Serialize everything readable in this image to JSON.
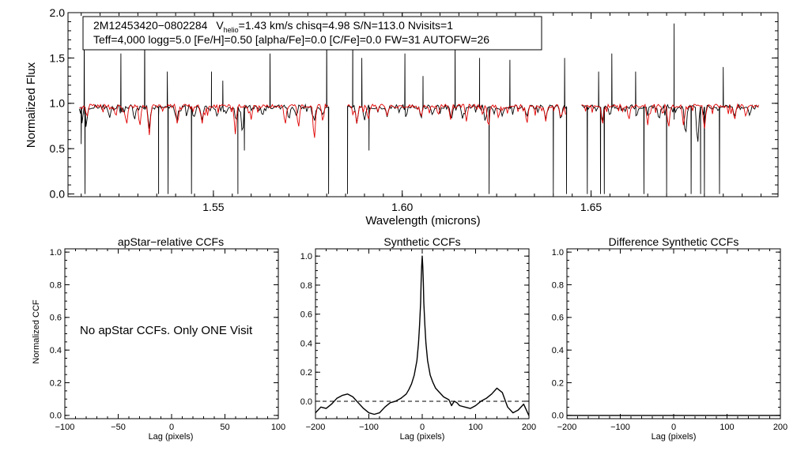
{
  "colors": {
    "observed": "#000000",
    "model": "#e00000",
    "background": "#ffffff"
  },
  "info_box": {
    "line1_star": "2M12453420−0802284",
    "line1_v": "V",
    "line1_vsub": "helio",
    "line1_rest": "=1.43 km/s  chisq=4.98  S/N=113.0  Nvisits=1",
    "line2": "Teff=4,000 logg=5.0 [Fe/H]=0.50 [alpha/Fe]=0.0 [C/Fe]=0.0 FW=31 AUTOFW=26"
  },
  "no_ccf_message": "No apStar CCFs.  Only ONE Visit",
  "chart_data": [
    {
      "id": "spectrum",
      "type": "line",
      "title": "",
      "xlabel": "Wavelength (microns)",
      "ylabel": "Normalized Flux",
      "xlim": [
        1.5115,
        1.6995
      ],
      "ylim": [
        -0.03,
        2.0
      ],
      "xticks": [
        1.55,
        1.6,
        1.65
      ],
      "xtick_labels": [
        "1.55",
        "1.60",
        "1.65"
      ],
      "yticks": [
        0.0,
        0.5,
        1.0,
        1.5,
        2.0
      ],
      "ytick_labels": [
        "0.0",
        "0.5",
        "1.0",
        "1.5",
        "2.0"
      ],
      "chips": [
        [
          1.5145,
          1.5805
        ],
        [
          1.5855,
          1.6435
        ],
        [
          1.6475,
          1.6945
        ]
      ],
      "series": [
        {
          "name": "observed spectrum",
          "color": "#000000",
          "continuum": 0.96,
          "absorption": [
            [
              1.5152,
              0.78
            ],
            [
              1.5163,
              0.72
            ],
            [
              1.5225,
              0.83
            ],
            [
              1.5291,
              0.8
            ],
            [
              1.533,
              0.7
            ],
            [
              1.5403,
              0.78
            ],
            [
              1.5448,
              0.82
            ],
            [
              1.547,
              0.8
            ],
            [
              1.551,
              0.84
            ],
            [
              1.556,
              0.78
            ],
            [
              1.5577,
              0.62
            ],
            [
              1.563,
              0.85
            ],
            [
              1.57,
              0.8
            ],
            [
              1.572,
              0.85
            ],
            [
              1.5767,
              0.78
            ],
            [
              1.579,
              0.86
            ],
            [
              1.588,
              0.76
            ],
            [
              1.59,
              0.8
            ],
            [
              1.596,
              0.85
            ],
            [
              1.601,
              0.83
            ],
            [
              1.605,
              0.82
            ],
            [
              1.608,
              0.86
            ],
            [
              1.613,
              0.8
            ],
            [
              1.616,
              0.82
            ],
            [
              1.622,
              0.78
            ],
            [
              1.6265,
              0.85
            ],
            [
              1.633,
              0.84
            ],
            [
              1.638,
              0.82
            ],
            [
              1.642,
              0.8
            ],
            [
              1.653,
              0.78
            ],
            [
              1.655,
              0.85
            ],
            [
              1.662,
              0.83
            ],
            [
              1.668,
              0.8
            ],
            [
              1.672,
              0.82
            ],
            [
              1.675,
              0.6
            ],
            [
              1.6782,
              0.5
            ],
            [
              1.68,
              0.78
            ],
            [
              1.688,
              0.84
            ],
            [
              1.692,
              0.86
            ]
          ],
          "spikes_up": [
            [
              1.5125,
              2.0
            ],
            [
              1.5158,
              1.85
            ],
            [
              1.5255,
              1.55
            ],
            [
              1.5318,
              1.9
            ],
            [
              1.5378,
              1.35
            ],
            [
              1.5495,
              1.35
            ],
            [
              1.5525,
              1.25
            ],
            [
              1.565,
              1.55
            ],
            [
              1.58,
              1.88
            ],
            [
              1.5869,
              1.95
            ],
            [
              1.5893,
              1.5
            ],
            [
              1.6007,
              1.55
            ],
            [
              1.6055,
              1.3
            ],
            [
              1.614,
              1.75
            ],
            [
              1.6205,
              1.5
            ],
            [
              1.6285,
              1.48
            ],
            [
              1.643,
              1.5
            ],
            [
              1.652,
              1.35
            ],
            [
              1.6555,
              1.55
            ],
            [
              1.6618,
              1.35
            ],
            [
              1.672,
              1.88
            ],
            [
              1.685,
              1.4
            ]
          ],
          "spikes_down": [
            [
              1.515,
              0.55
            ],
            [
              1.516,
              0.0
            ],
            [
              1.5355,
              0.0
            ],
            [
              1.538,
              0.0
            ],
            [
              1.5442,
              0.0
            ],
            [
              1.5565,
              0.0
            ],
            [
              1.5582,
              0.48
            ],
            [
              1.5805,
              0.0
            ],
            [
              1.5855,
              0.0
            ],
            [
              1.5912,
              0.48
            ],
            [
              1.623,
              0.0
            ],
            [
              1.64,
              0.0
            ],
            [
              1.6435,
              0.0
            ],
            [
              1.649,
              0.0
            ],
            [
              1.6525,
              0.0
            ],
            [
              1.6535,
              0.0
            ],
            [
              1.664,
              0.0
            ],
            [
              1.67,
              0.0
            ],
            [
              1.6765,
              0.0
            ],
            [
              1.679,
              0.0
            ],
            [
              1.68,
              0.0
            ],
            [
              1.684,
              0.0
            ]
          ]
        },
        {
          "name": "synthetic model",
          "color": "#e00000",
          "continuum": 0.97,
          "absorption": [
            [
              1.5165,
              0.84
            ],
            [
              1.527,
              0.74
            ],
            [
              1.5305,
              0.72
            ],
            [
              1.533,
              0.62
            ],
            [
              1.5405,
              0.74
            ],
            [
              1.547,
              0.76
            ],
            [
              1.5558,
              0.66
            ],
            [
              1.56,
              0.82
            ],
            [
              1.569,
              0.74
            ],
            [
              1.5725,
              0.7
            ],
            [
              1.5767,
              0.55
            ],
            [
              1.579,
              0.78
            ],
            [
              1.588,
              0.76
            ],
            [
              1.591,
              0.8
            ],
            [
              1.596,
              0.86
            ],
            [
              1.605,
              0.84
            ],
            [
              1.6128,
              0.82
            ],
            [
              1.617,
              0.8
            ],
            [
              1.6228,
              0.7
            ],
            [
              1.6255,
              0.82
            ],
            [
              1.633,
              0.75
            ],
            [
              1.638,
              0.8
            ],
            [
              1.642,
              0.82
            ],
            [
              1.653,
              0.74
            ],
            [
              1.66,
              0.8
            ],
            [
              1.665,
              0.76
            ],
            [
              1.6705,
              0.7
            ],
            [
              1.6745,
              0.74
            ],
            [
              1.68,
              0.7
            ],
            [
              1.688,
              0.8
            ],
            [
              1.691,
              0.84
            ]
          ],
          "spikes_up": [
            [
              1.5808,
              1.05
            ]
          ]
        }
      ]
    },
    {
      "id": "apstar_ccf",
      "type": "line",
      "title": "apStar−relative CCFs",
      "xlabel": "Lag (pixels)",
      "ylabel": "Normalized CCF",
      "xlim": [
        -100,
        100
      ],
      "ylim": [
        -0.02,
        1.02
      ],
      "xticks": [
        -100,
        -50,
        0,
        50,
        100
      ],
      "xtick_labels": [
        "−100",
        "−50",
        "0",
        "50",
        "100"
      ],
      "yticks": [
        0.0,
        0.2,
        0.4,
        0.6,
        0.8,
        1.0
      ],
      "ytick_labels": [
        "0.0",
        "0.2",
        "0.4",
        "0.6",
        "0.8",
        "1.0"
      ],
      "series": []
    },
    {
      "id": "synthetic_ccf",
      "type": "line",
      "title": "Synthetic CCFs",
      "xlabel": "Lag (pixels)",
      "ylabel": "",
      "xlim": [
        -200,
        200
      ],
      "ylim": [
        -0.12,
        1.05
      ],
      "xticks": [
        -200,
        -100,
        0,
        100,
        200
      ],
      "xtick_labels": [
        "−200",
        "−100",
        "0",
        "100",
        "200"
      ],
      "yticks": [
        0.0,
        0.2,
        0.4,
        0.6,
        0.8,
        1.0
      ],
      "ytick_labels": [
        "0.0",
        "0.2",
        "0.4",
        "0.6",
        "0.8",
        "1.0"
      ],
      "reference_line": {
        "y": 0.0,
        "style": "dashed"
      },
      "series": [
        {
          "name": "synthetic CCF",
          "color": "#000000",
          "x": [
            -200,
            -190,
            -180,
            -170,
            -160,
            -150,
            -140,
            -130,
            -120,
            -110,
            -100,
            -90,
            -80,
            -70,
            -60,
            -50,
            -40,
            -30,
            -25,
            -20,
            -15,
            -10,
            -7,
            -5,
            -3,
            -2,
            -1,
            0,
            1,
            2,
            3,
            5,
            7,
            10,
            15,
            20,
            25,
            30,
            40,
            50,
            55,
            60,
            65,
            70,
            80,
            90,
            100,
            110,
            120,
            130,
            140,
            150,
            160,
            170,
            180,
            190,
            200
          ],
          "y": [
            -0.08,
            -0.04,
            -0.05,
            -0.02,
            0.02,
            0.04,
            0.05,
            0.03,
            -0.01,
            -0.05,
            -0.08,
            -0.09,
            -0.08,
            -0.04,
            -0.01,
            0.0,
            0.02,
            0.05,
            0.08,
            0.12,
            0.18,
            0.28,
            0.4,
            0.52,
            0.68,
            0.82,
            0.93,
            1.0,
            0.93,
            0.82,
            0.68,
            0.52,
            0.4,
            0.28,
            0.18,
            0.13,
            0.09,
            0.07,
            0.03,
            0.01,
            -0.03,
            0.0,
            -0.01,
            -0.03,
            -0.04,
            -0.05,
            -0.03,
            0.0,
            0.02,
            0.05,
            0.09,
            0.06,
            -0.04,
            -0.08,
            -0.06,
            -0.02,
            -0.1
          ]
        }
      ]
    },
    {
      "id": "difference_ccf",
      "type": "line",
      "title": "Difference Synthetic CCFs",
      "xlabel": "Lag (pixels)",
      "ylabel": "",
      "xlim": [
        -200,
        200
      ],
      "ylim": [
        -0.02,
        1.02
      ],
      "xticks": [
        -200,
        -100,
        0,
        100,
        200
      ],
      "xtick_labels": [
        "−200",
        "−100",
        "0",
        "100",
        "200"
      ],
      "yticks": [
        0.0,
        0.2,
        0.4,
        0.6,
        0.8,
        1.0
      ],
      "ytick_labels": [
        "0.0",
        "0.2",
        "0.4",
        "0.6",
        "0.8",
        "1.0"
      ],
      "series": [
        {
          "name": "difference CCF",
          "color": "#000000",
          "x": [
            -200,
            200
          ],
          "y": [
            0.0,
            0.0
          ]
        }
      ]
    }
  ]
}
